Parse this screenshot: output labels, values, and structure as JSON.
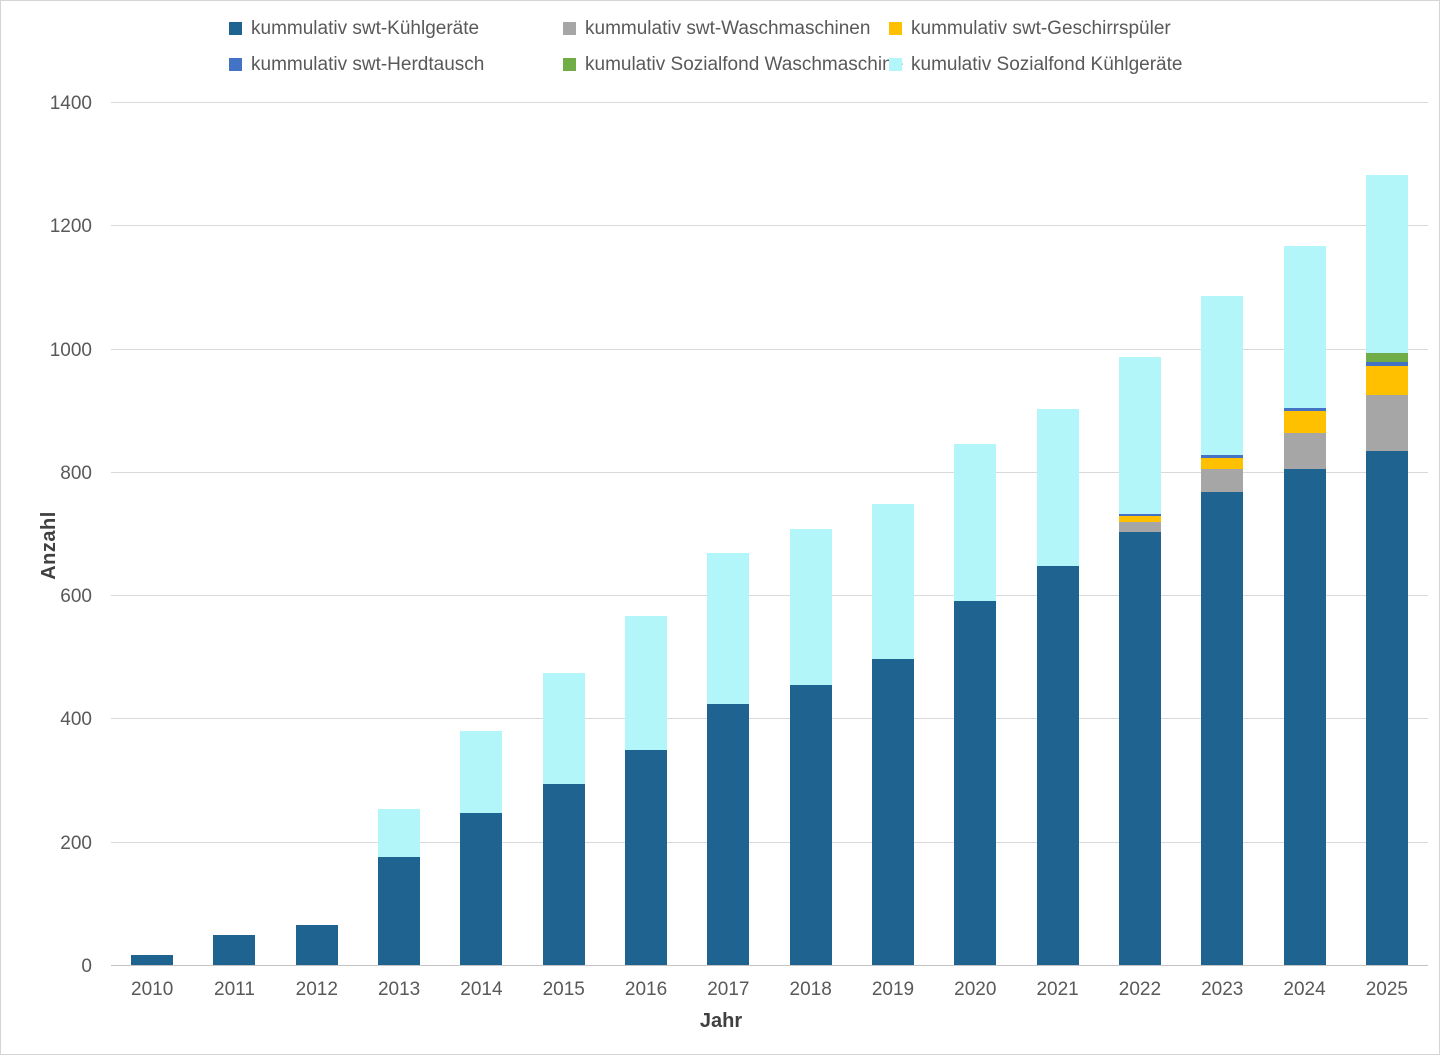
{
  "chart_data": {
    "type": "bar",
    "stacked": true,
    "title": "",
    "xlabel": "Jahr",
    "ylabel": "Anzahl",
    "ylim": [
      0,
      1400
    ],
    "y_ticks": [
      0,
      200,
      400,
      600,
      800,
      1000,
      1200,
      1400
    ],
    "grid": true,
    "legend_position": "top",
    "categories": [
      "2010",
      "2011",
      "2012",
      "2013",
      "2014",
      "2015",
      "2016",
      "2017",
      "2018",
      "2019",
      "2020",
      "2021",
      "2022",
      "2023",
      "2024",
      "2025"
    ],
    "series": [
      {
        "name": "kummulativ swt-Kühlgeräte",
        "color": "#1F6491",
        "values": [
          16,
          48,
          65,
          176,
          246,
          293,
          348,
          424,
          455,
          497,
          590,
          648,
          703,
          767,
          804,
          834
        ]
      },
      {
        "name": "kummulativ swt-Waschmaschinen",
        "color": "#A6A6A6",
        "values": [
          0,
          0,
          0,
          0,
          0,
          0,
          0,
          0,
          0,
          0,
          0,
          0,
          15,
          37,
          59,
          91
        ]
      },
      {
        "name": "kummulativ swt-Geschirrspüler",
        "color": "#FFC000",
        "values": [
          0,
          0,
          0,
          0,
          0,
          0,
          0,
          0,
          0,
          0,
          0,
          0,
          10,
          19,
          35,
          47
        ]
      },
      {
        "name": "kummulativ swt-Herdtausch",
        "color": "#4472C4",
        "values": [
          0,
          0,
          0,
          0,
          0,
          0,
          0,
          0,
          0,
          0,
          0,
          0,
          4,
          4,
          5,
          7
        ]
      },
      {
        "name": "kumulativ Sozialfond Waschmaschine",
        "color": "#70AD47",
        "values": [
          0,
          0,
          0,
          0,
          0,
          0,
          0,
          0,
          0,
          0,
          0,
          0,
          0,
          0,
          0,
          14
        ]
      },
      {
        "name": "kumulativ Sozialfond Kühlgeräte",
        "color": "#B2F6FA",
        "values": [
          0,
          0,
          0,
          77,
          133,
          181,
          218,
          244,
          253,
          251,
          255,
          254,
          254,
          258,
          264,
          289
        ]
      }
    ]
  },
  "colors": {
    "gridline": "#D9D9D9",
    "axis_line": "#C3C3C3",
    "tick_text": "#595959",
    "axis_title_text": "#404040"
  }
}
